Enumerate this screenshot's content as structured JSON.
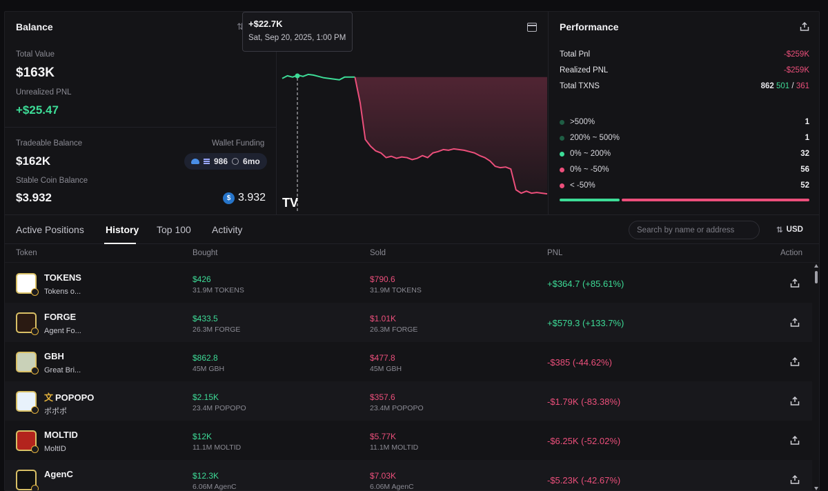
{
  "balance": {
    "title": "Balance",
    "total_value_label": "Total Value",
    "total_value": "$163K",
    "unrealized_label": "Unrealized PNL",
    "unrealized_value": "+$25.47",
    "tradeable_label": "Tradeable Balance",
    "tradeable_value": "$162K",
    "wallet_funding_label": "Wallet Funding",
    "wallet_count": "986",
    "wallet_age": "6mo",
    "stable_label": "Stable Coin Balance",
    "stable_value": "$3.932",
    "usdc_value": "3.932"
  },
  "chart": {
    "tooltip_value": "+$22.7K",
    "tooltip_date": "Sat, Sep 20, 2025, 1:00 PM",
    "logo_text": "TV",
    "colors": {
      "profit": "#3ddc97",
      "loss": "#ec4f7b"
    }
  },
  "chart_data": {
    "type": "line",
    "series": [
      {
        "values": [
          22.1,
          22.5,
          22.3,
          22.6,
          22.4,
          22.7,
          22.6,
          22.4,
          22.2,
          22.1,
          22.0,
          21.9,
          22.3,
          22.3,
          22.3,
          18.5,
          13.0,
          12.0,
          11.3,
          11.0,
          10.3,
          10.5,
          10.2,
          10.4,
          10.3,
          10.0,
          10.2,
          10.6,
          10.3,
          11.0,
          11.2,
          11.5,
          11.4,
          11.6,
          11.5,
          11.4,
          11.2,
          11.0,
          10.6,
          10.3,
          9.8,
          9.0,
          8.8,
          8.9,
          8.6,
          5.5,
          5.0,
          5.3,
          5.0,
          5.1,
          5.0,
          4.9
        ]
      }
    ]
  },
  "performance": {
    "title": "Performance",
    "total_pnl_label": "Total Pnl",
    "total_pnl_value": "-$259K",
    "realized_label": "Realized PNL",
    "realized_value": "-$259K",
    "txns_label": "Total TXNS",
    "txns_total": "862",
    "txns_buy": "501",
    "txns_sep": "/",
    "txns_sell": "361",
    "distribution": [
      {
        "label": ">500%",
        "value": "1",
        "color": "#1f5d44"
      },
      {
        "label": "200% ~ 500%",
        "value": "1",
        "color": "#1f5d44"
      },
      {
        "label": "0% ~ 200%",
        "value": "32",
        "color": "#3ddc97"
      },
      {
        "label": "0% ~ -50%",
        "value": "56",
        "color": "#ec4f7b"
      },
      {
        "label": "< -50%",
        "value": "52",
        "color": "#ec4f7b"
      }
    ],
    "win_fraction": 0.24
  },
  "tabs": [
    {
      "label": "Active Positions"
    },
    {
      "label": "History"
    },
    {
      "label": "Top 100"
    },
    {
      "label": "Activity"
    }
  ],
  "search": {
    "placeholder": "Search by name or address"
  },
  "currency": "USD",
  "table": {
    "headers": {
      "token": "Token",
      "bought": "Bought",
      "sold": "Sold",
      "pnl": "PNL",
      "action": "Action"
    },
    "rows": [
      {
        "symbol": "TOKENS",
        "name": "Tokens o...",
        "bought": "$426",
        "bought_amt": "31.9M TOKENS",
        "sold": "$790.6",
        "sold_amt": "31.9M TOKENS",
        "pnl": "+$364.7 (+85.61%)",
        "positive": true,
        "icon": "tokens-logo-icon",
        "prefix": ""
      },
      {
        "symbol": "FORGE",
        "name": "Agent Fo...",
        "bought": "$433.5",
        "bought_amt": "26.3M FORGE",
        "sold": "$1.01K",
        "sold_amt": "26.3M FORGE",
        "pnl": "+$579.3 (+133.7%)",
        "positive": true,
        "icon": "forge-logo-icon",
        "prefix": ""
      },
      {
        "symbol": "GBH",
        "name": "Great Bri...",
        "bought": "$862.8",
        "bought_amt": "45M GBH",
        "sold": "$477.8",
        "sold_amt": "45M GBH",
        "pnl": "-$385 (-44.62%)",
        "positive": false,
        "icon": "gbh-logo-icon",
        "prefix": ""
      },
      {
        "symbol": "POPOPO",
        "name": "ポポポ",
        "bought": "$2.15K",
        "bought_amt": "23.4M POPOPO",
        "sold": "$357.6",
        "sold_amt": "23.4M POPOPO",
        "pnl": "-$1.79K (-83.38%)",
        "positive": false,
        "icon": "popopo-logo-icon",
        "prefix": "文"
      },
      {
        "symbol": "MOLTID",
        "name": "MoltID",
        "bought": "$12K",
        "bought_amt": "11.1M MOLTID",
        "sold": "$5.77K",
        "sold_amt": "11.1M MOLTID",
        "pnl": "-$6.25K (-52.02%)",
        "positive": false,
        "icon": "moltid-logo-icon",
        "prefix": ""
      },
      {
        "symbol": "AgenC",
        "name": "",
        "bought": "$12.3K",
        "bought_amt": "6.06M AgenC",
        "sold": "$7.03K",
        "sold_amt": "6.06M AgenC",
        "pnl": "-$5.23K (-42.67%)",
        "positive": false,
        "icon": "agenc-logo-icon",
        "prefix": ""
      }
    ]
  }
}
